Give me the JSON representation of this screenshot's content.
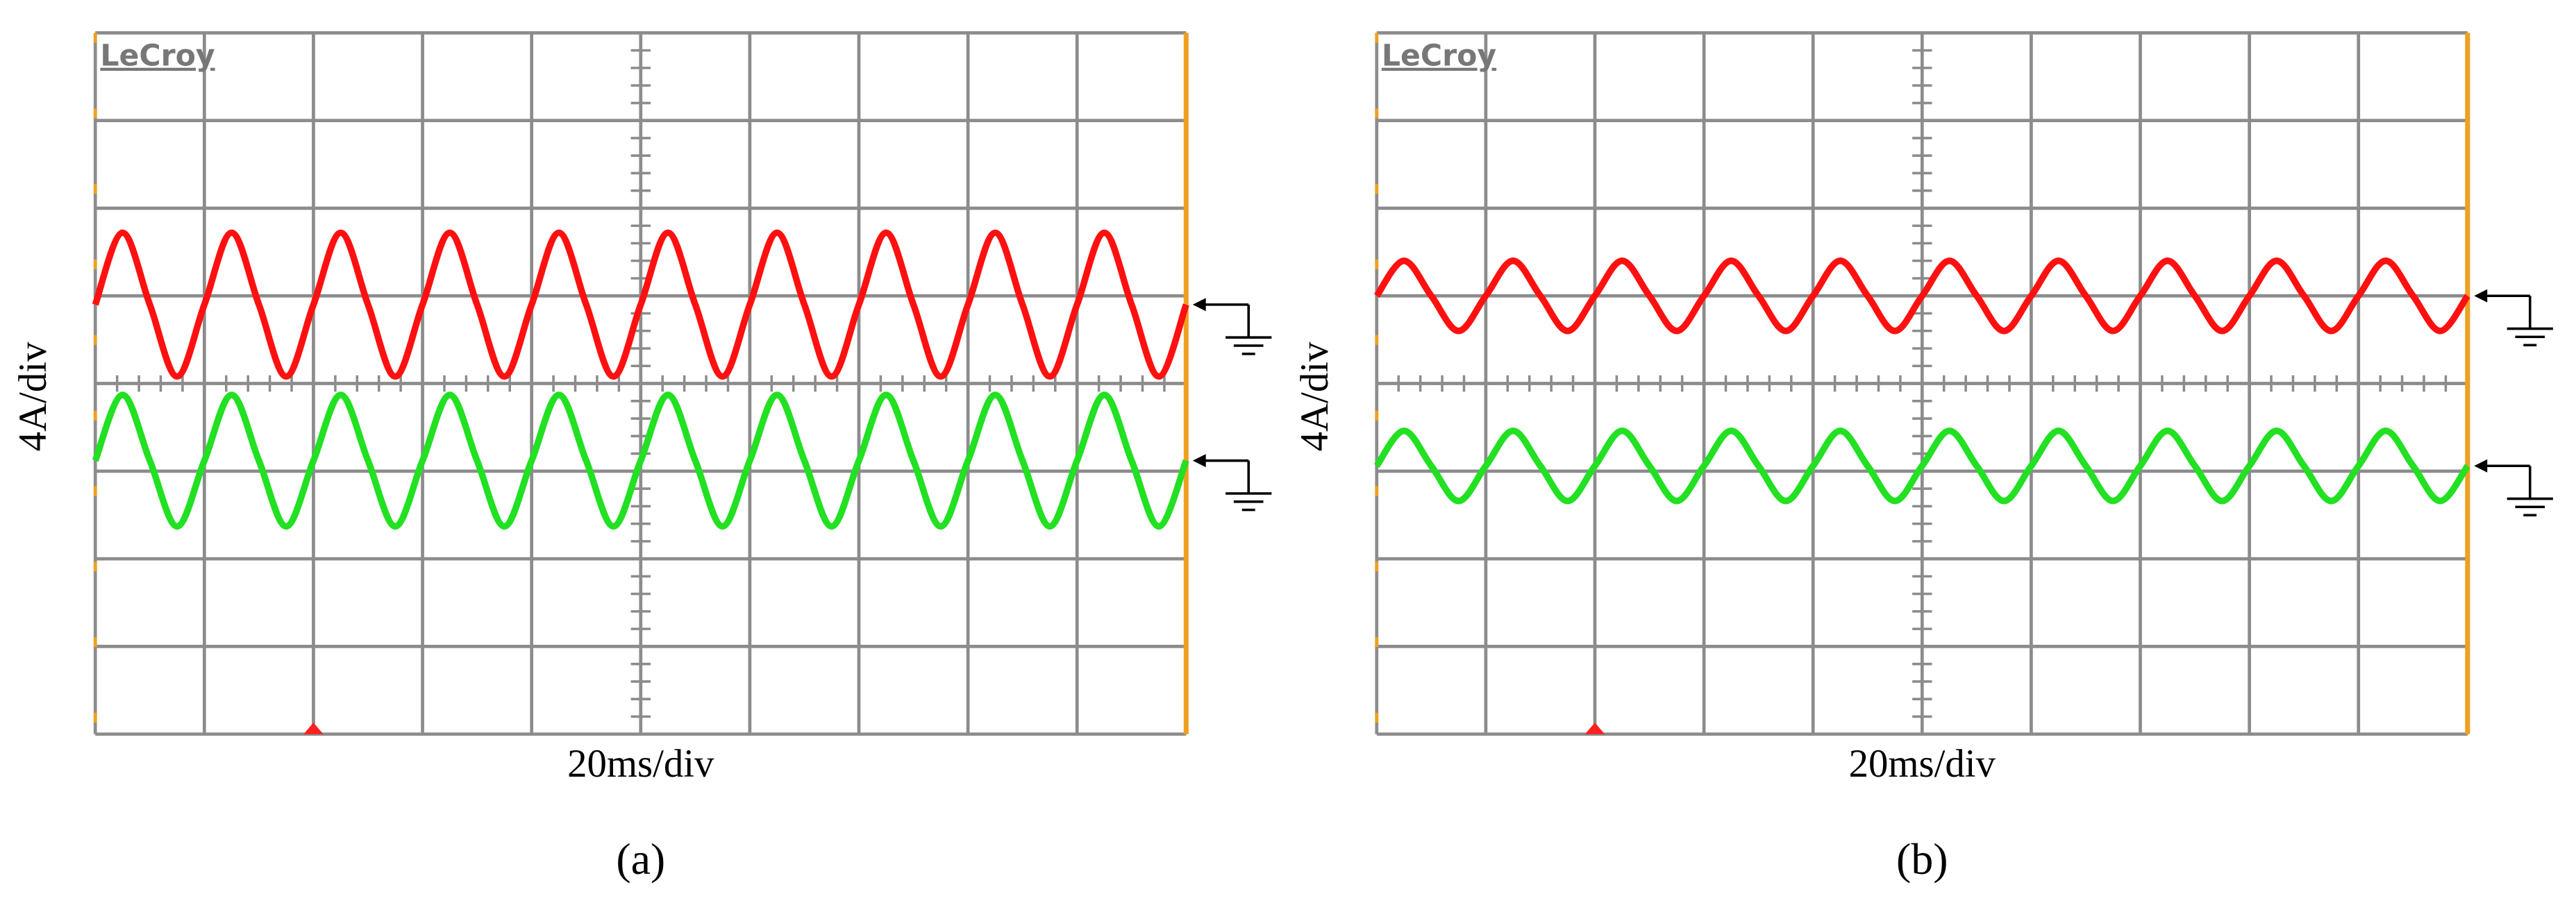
{
  "chart_data": [
    {
      "type": "line",
      "logo": "LeCroy",
      "y_label": "4A/div",
      "x_label": "20ms/div",
      "panel_label": "(a)",
      "xlim": [
        0,
        10
      ],
      "ylim": [
        -4,
        4
      ],
      "xticks": [
        0,
        1,
        2,
        3,
        4,
        5,
        6,
        7,
        8,
        9,
        10
      ],
      "yticks": [
        -4,
        -3,
        -2,
        -1,
        0,
        1,
        2,
        3,
        4
      ],
      "grid": true,
      "x": [
        0,
        0.25,
        0.5,
        0.75,
        1,
        1.25,
        1.5,
        1.75,
        2,
        2.25,
        2.5,
        2.75,
        3,
        3.25,
        3.5,
        3.75,
        4,
        4.25,
        4.5,
        4.75,
        5,
        5.25,
        5.5,
        5.75,
        6,
        6.25,
        6.5,
        6.75,
        7,
        7.25,
        7.5,
        7.75,
        8,
        8.25,
        8.5,
        8.75,
        9,
        9.25,
        9.5,
        9.75,
        10
      ],
      "series": [
        {
          "color": "#ff1010",
          "values": [
            0.9,
            1.72,
            0.9,
            0.08,
            0.9,
            1.72,
            0.9,
            0.08,
            0.9,
            1.72,
            0.9,
            0.08,
            0.9,
            1.72,
            0.9,
            0.08,
            0.9,
            1.72,
            0.9,
            0.08,
            0.9,
            1.72,
            0.9,
            0.08,
            0.9,
            1.72,
            0.9,
            0.08,
            0.9,
            1.72,
            0.9,
            0.08,
            0.9,
            1.72,
            0.9,
            0.08,
            0.9,
            1.72,
            0.9,
            0.08,
            0.9
          ]
        },
        {
          "color": "#22e022",
          "values": [
            -0.88,
            -0.13,
            -0.88,
            -1.63,
            -0.88,
            -0.13,
            -0.88,
            -1.63,
            -0.88,
            -0.13,
            -0.88,
            -1.63,
            -0.88,
            -0.13,
            -0.88,
            -1.63,
            -0.88,
            -0.13,
            -0.88,
            -1.63,
            -0.88,
            -0.13,
            -0.88,
            -1.63,
            -0.88,
            -0.13,
            -0.88,
            -1.63,
            -0.88,
            -0.13,
            -0.88,
            -1.63,
            -0.88,
            -0.13,
            -0.88,
            -1.63,
            -0.88,
            -0.13,
            -0.88,
            -1.63,
            -0.88
          ]
        }
      ]
    },
    {
      "type": "line",
      "logo": "LeCroy",
      "y_label": "4A/div",
      "x_label": "20ms/div",
      "panel_label": "(b)",
      "xlim": [
        0,
        10
      ],
      "ylim": [
        -4,
        4
      ],
      "xticks": [
        0,
        1,
        2,
        3,
        4,
        5,
        6,
        7,
        8,
        9,
        10
      ],
      "yticks": [
        -4,
        -3,
        -2,
        -1,
        0,
        1,
        2,
        3,
        4
      ],
      "grid": true,
      "x": [
        0,
        0.25,
        0.5,
        0.75,
        1,
        1.25,
        1.5,
        1.75,
        2,
        2.25,
        2.5,
        2.75,
        3,
        3.25,
        3.5,
        3.75,
        4,
        4.25,
        4.5,
        4.75,
        5,
        5.25,
        5.5,
        5.75,
        6,
        6.25,
        6.5,
        6.75,
        7,
        7.25,
        7.5,
        7.75,
        8,
        8.25,
        8.5,
        8.75,
        9,
        9.25,
        9.5,
        9.75,
        10
      ],
      "series": [
        {
          "color": "#ff1010",
          "values": [
            1.0,
            1.4,
            1.0,
            0.6,
            1.0,
            1.4,
            1.0,
            0.6,
            1.0,
            1.4,
            1.0,
            0.6,
            1.0,
            1.4,
            1.0,
            0.6,
            1.0,
            1.4,
            1.0,
            0.6,
            1.0,
            1.4,
            1.0,
            0.6,
            1.0,
            1.4,
            1.0,
            0.6,
            1.0,
            1.4,
            1.0,
            0.6,
            1.0,
            1.4,
            1.0,
            0.6,
            1.0,
            1.4,
            1.0,
            0.6,
            1.0
          ]
        },
        {
          "color": "#22e022",
          "values": [
            -0.94,
            -0.54,
            -0.94,
            -1.34,
            -0.94,
            -0.54,
            -0.94,
            -1.34,
            -0.94,
            -0.54,
            -0.94,
            -1.34,
            -0.94,
            -0.54,
            -0.94,
            -1.34,
            -0.94,
            -0.54,
            -0.94,
            -1.34,
            -0.94,
            -0.54,
            -0.94,
            -1.34,
            -0.94,
            -0.54,
            -0.94,
            -1.34,
            -0.94,
            -0.54,
            -0.94,
            -1.34,
            -0.94,
            -0.54,
            -0.94,
            -1.34,
            -0.94,
            -0.54,
            -0.94,
            -1.34,
            -0.94
          ]
        }
      ]
    }
  ]
}
